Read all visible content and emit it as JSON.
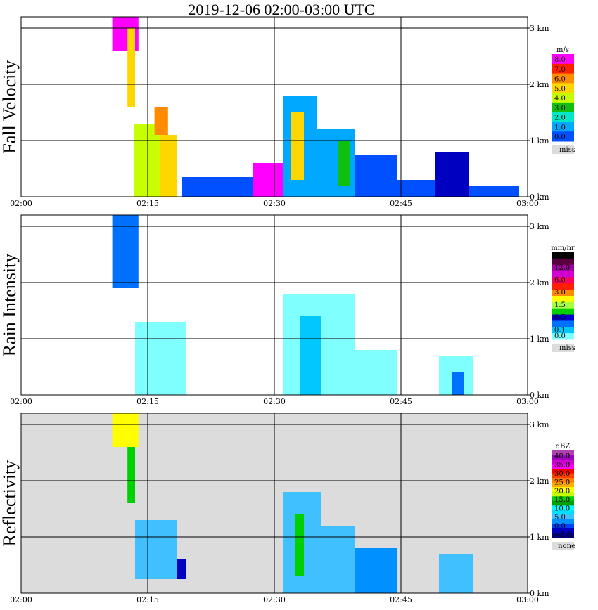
{
  "title": "2019-12-06   02:00-03:00 UTC",
  "colors": {
    "missing": "#dcdcdc",
    "gridline": "#000000",
    "background": "#ffffff"
  },
  "chart_data": [
    {
      "type": "heatmap",
      "ylabel": "Fall Velocity",
      "xticks": [
        "02:00",
        "02:15",
        "02:30",
        "02:45",
        "03:00"
      ],
      "yticks": [
        "0 km",
        "1 km",
        "2 km",
        "3 km"
      ],
      "xlim_minutes": [
        0,
        60
      ],
      "ylim_km": [
        0,
        3.2
      ],
      "legend": {
        "unit": "m/s",
        "labels": [
          "8.0",
          "7.0",
          "6.0",
          "5.0",
          "4.0",
          "3.0",
          "2.0",
          "1.0",
          "0.0",
          "miss"
        ],
        "colors": [
          "#ff00ff",
          "#ff2000",
          "#ff8c00",
          "#ffd700",
          "#c8ff00",
          "#10c010",
          "#00e8c8",
          "#00a8ff",
          "#0050ff",
          "#0000c0"
        ],
        "missing_label": "miss"
      },
      "cells": [
        {
          "t0": 10.8,
          "t1": 13.9,
          "h0": 2.6,
          "h1": 3.2,
          "c": 0
        },
        {
          "t0": 12.6,
          "t1": 13.5,
          "h0": 1.6,
          "h1": 3.0,
          "c": 3
        },
        {
          "t0": 13.4,
          "t1": 16.5,
          "h0": 0.0,
          "h1": 1.3,
          "c": 4
        },
        {
          "t0": 15.8,
          "t1": 17.4,
          "h0": 1.1,
          "h1": 1.6,
          "c": 2
        },
        {
          "t0": 16.4,
          "t1": 18.5,
          "h0": 0.0,
          "h1": 1.1,
          "c": 3
        },
        {
          "t0": 19.0,
          "t1": 27.5,
          "h0": 0.0,
          "h1": 0.35,
          "c": 8
        },
        {
          "t0": 27.5,
          "t1": 31.0,
          "h0": 0.0,
          "h1": 0.6,
          "c": 0
        },
        {
          "t0": 31.0,
          "t1": 35.0,
          "h0": 0.0,
          "h1": 1.8,
          "c": 7
        },
        {
          "t0": 32.0,
          "t1": 33.5,
          "h0": 0.3,
          "h1": 1.5,
          "c": 3
        },
        {
          "t0": 35.0,
          "t1": 39.5,
          "h0": 0.0,
          "h1": 1.2,
          "c": 7
        },
        {
          "t0": 37.5,
          "t1": 39.0,
          "h0": 0.2,
          "h1": 1.0,
          "c": 5
        },
        {
          "t0": 39.5,
          "t1": 44.5,
          "h0": 0.0,
          "h1": 0.75,
          "c": 8
        },
        {
          "t0": 44.5,
          "t1": 49.0,
          "h0": 0.0,
          "h1": 0.3,
          "c": 8
        },
        {
          "t0": 49.0,
          "t1": 53.0,
          "h0": 0.0,
          "h1": 0.8,
          "c": 9
        },
        {
          "t0": 53.0,
          "t1": 59.0,
          "h0": 0.0,
          "h1": 0.2,
          "c": 8
        }
      ]
    },
    {
      "type": "heatmap",
      "ylabel": "Rain Intensity",
      "xticks": [
        "02:00",
        "02:15",
        "02:30",
        "02:45",
        "03:00"
      ],
      "yticks": [
        "0 km",
        "1 km",
        "2 km",
        "3 km"
      ],
      "xlim_minutes": [
        0,
        60
      ],
      "ylim_km": [
        0,
        3.2
      ],
      "legend": {
        "unit": "mm/hr",
        "labels": [
          "48.0",
          "",
          "12.0",
          "",
          "6.0",
          "",
          "3.0",
          "",
          "1.5",
          "",
          "0.5",
          "",
          "0.1",
          "0.0",
          "miss"
        ],
        "colors": [
          "#000000",
          "#5a0040",
          "#a000a0",
          "#d000d0",
          "#ff0060",
          "#ff2000",
          "#ff8c00",
          "#ffff00",
          "#a8ff40",
          "#00d000",
          "#0000d0",
          "#0070ff",
          "#00c8ff",
          "#80ffff",
          "#ffffff"
        ],
        "missing_label": "miss"
      },
      "cells": [
        {
          "t0": 10.8,
          "t1": 13.9,
          "h0": 1.9,
          "h1": 3.2,
          "c": 11
        },
        {
          "t0": 13.5,
          "t1": 19.5,
          "h0": 0.0,
          "h1": 1.3,
          "c": 13
        },
        {
          "t0": 31.0,
          "t1": 39.5,
          "h0": 0.0,
          "h1": 1.8,
          "c": 13
        },
        {
          "t0": 33.0,
          "t1": 35.5,
          "h0": 0.0,
          "h1": 1.4,
          "c": 12
        },
        {
          "t0": 39.5,
          "t1": 44.5,
          "h0": 0.0,
          "h1": 0.8,
          "c": 13
        },
        {
          "t0": 49.5,
          "t1": 53.5,
          "h0": 0.0,
          "h1": 0.7,
          "c": 13
        },
        {
          "t0": 51.0,
          "t1": 52.5,
          "h0": 0.0,
          "h1": 0.4,
          "c": 11
        }
      ]
    },
    {
      "type": "heatmap",
      "ylabel": "Reflectivity",
      "xticks": [
        "02:00",
        "02:15",
        "02:30",
        "02:45",
        "03:00"
      ],
      "yticks": [
        "0 km",
        "1 km",
        "2 km",
        "3 km"
      ],
      "xlim_minutes": [
        0,
        60
      ],
      "ylim_km": [
        0,
        3.2
      ],
      "legend": {
        "unit": "dBZ",
        "labels": [
          "",
          "40.0",
          "",
          "35.0",
          "",
          "30.0",
          "",
          "25.0",
          "",
          "20.0",
          "",
          "15.0",
          "",
          "10.0",
          "",
          "5.0",
          "",
          "0.0",
          "",
          "−5.0",
          "none"
        ],
        "colors": [
          "#b040b0",
          "#a000c0",
          "#d000d0",
          "#ff00ff",
          "#ff0000",
          "#ff4000",
          "#ff8000",
          "#ffb000",
          "#ffff00",
          "#c8ff00",
          "#00d000",
          "#00a000",
          "#00ffff",
          "#00e0ff",
          "#40c0ff",
          "#0090ff",
          "#0040ff",
          "#0000c0",
          "#000080",
          "#dcdcdc"
        ],
        "missing_label": "none"
      },
      "background": "#dcdcdc",
      "cells": [
        {
          "t0": 10.8,
          "t1": 13.9,
          "h0": 2.6,
          "h1": 3.2,
          "c": 8
        },
        {
          "t0": 12.6,
          "t1": 13.5,
          "h0": 1.6,
          "h1": 2.6,
          "c": 10
        },
        {
          "t0": 13.5,
          "t1": 18.5,
          "h0": 0.0,
          "h1": 1.3,
          "c": 14
        },
        {
          "t0": 18.5,
          "t1": 19.5,
          "h0": 0.0,
          "h1": 0.6,
          "c": 17
        },
        {
          "t0": 31.0,
          "t1": 35.5,
          "h0": 0.0,
          "h1": 1.8,
          "c": 14
        },
        {
          "t0": 32.5,
          "t1": 33.5,
          "h0": 0.3,
          "h1": 1.4,
          "c": 10
        },
        {
          "t0": 35.5,
          "t1": 39.5,
          "h0": 0.0,
          "h1": 1.2,
          "c": 14
        },
        {
          "t0": 39.5,
          "t1": 44.5,
          "h0": 0.0,
          "h1": 0.8,
          "c": 15
        },
        {
          "t0": 49.5,
          "t1": 53.5,
          "h0": 0.0,
          "h1": 0.7,
          "c": 14
        },
        {
          "t0": 0.5,
          "t1": 30.0,
          "h0": 0.0,
          "h1": 0.25,
          "c": 19
        }
      ]
    }
  ]
}
